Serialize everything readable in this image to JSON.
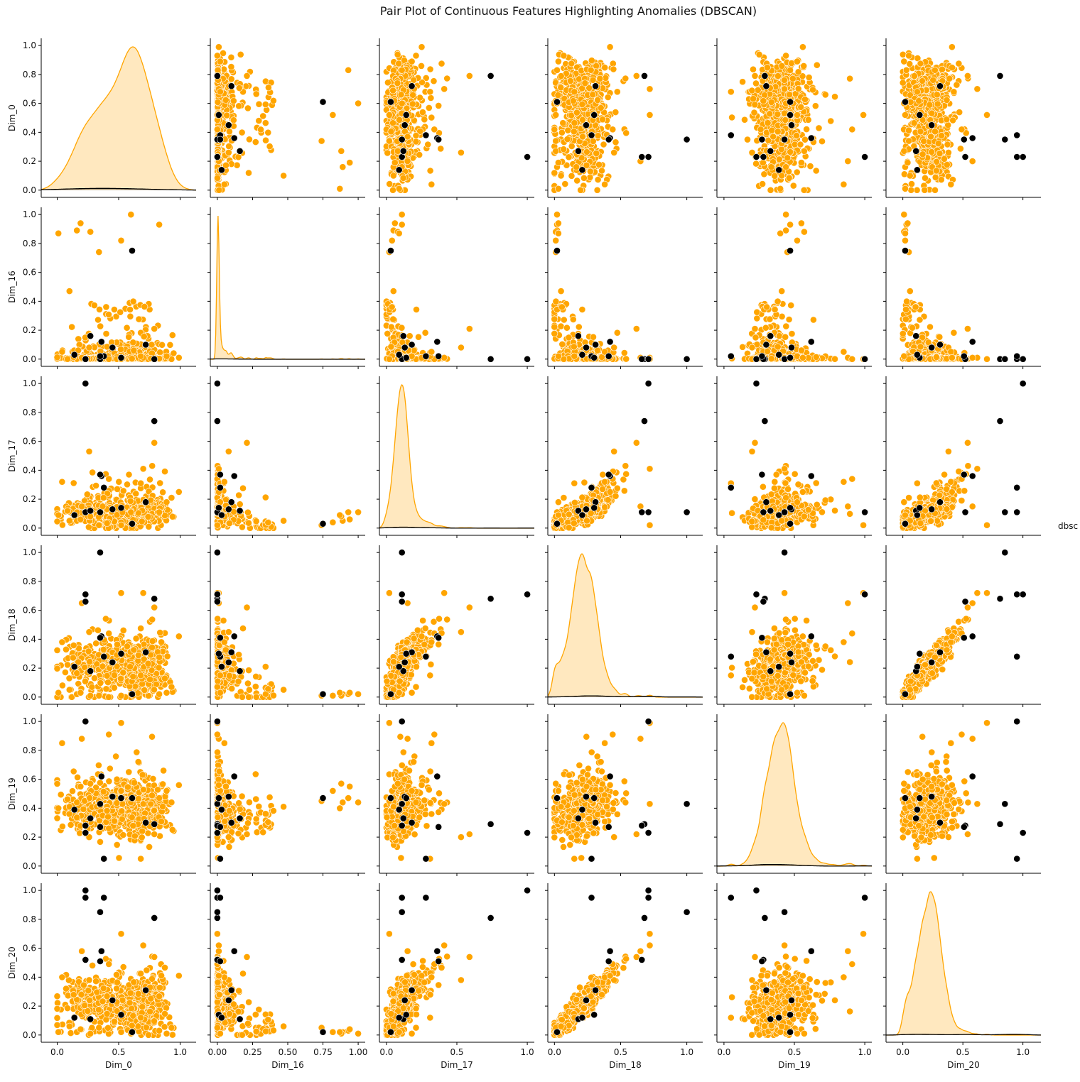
{
  "chart_data": {
    "type": "scatter",
    "title": "Pair Plot of Continuous Features Highlighting Anomalies (DBSCAN)",
    "subtype": "pairplot",
    "variables": [
      "Dim_0",
      "Dim_16",
      "Dim_17",
      "Dim_18",
      "Dim_19",
      "Dim_20"
    ],
    "diagonal_kind": "kde",
    "offdiagonal_kind": "scatter",
    "hue": "dbscan",
    "legend_title": "dbsc",
    "legend_position": "right",
    "colors": {
      "normal": "#ffa500",
      "anomaly": "#000000",
      "edge": "#ffffff"
    },
    "axes": {
      "Dim_0": {
        "lim": [
          -0.13,
          1.13
        ],
        "ticks": [
          "0.0",
          "0.5",
          "1.0"
        ],
        "tick_values": [
          0,
          0.5,
          1
        ]
      },
      "Dim_16": {
        "lim": [
          -0.05,
          1.05
        ],
        "ticks": [
          "0.00",
          "0.25",
          "0.50",
          "0.75",
          "1.00"
        ],
        "tick_values": [
          0,
          0.25,
          0.5,
          0.75,
          1
        ]
      },
      "Dim_17": {
        "lim": [
          -0.05,
          1.05
        ],
        "ticks": [
          "0.0",
          "0.5",
          "1.0"
        ],
        "tick_values": [
          0,
          0.5,
          1
        ]
      },
      "Dim_18": {
        "lim": [
          -0.05,
          1.12
        ],
        "ticks": [
          "0.0",
          "0.5",
          "1.0"
        ],
        "tick_values": [
          0,
          0.5,
          1
        ]
      },
      "Dim_19": {
        "lim": [
          -0.05,
          1.05
        ],
        "ticks": [
          "0.0",
          "0.5",
          "1.0"
        ],
        "tick_values": [
          0,
          0.5,
          1
        ]
      },
      "Dim_20": {
        "lim": [
          -0.14,
          1.15
        ],
        "ticks": [
          "0.0",
          "0.5",
          "1.0"
        ],
        "tick_values": [
          0,
          0.5,
          1
        ]
      }
    },
    "row_ticks": [
      "0.0",
      "0.2",
      "0.4",
      "0.6",
      "0.8",
      "1.0"
    ],
    "row_tick_values": [
      0,
      0.2,
      0.4,
      0.6,
      0.8,
      1.0
    ],
    "row_lim": [
      -0.05,
      1.05
    ],
    "anomalies": [
      [
        0.79,
        0.0,
        0.74,
        0.68,
        0.29,
        0.81
      ],
      [
        0.23,
        0.0,
        1.0,
        0.71,
        0.23,
        1.0
      ],
      [
        0.35,
        0.0,
        0.11,
        1.0,
        0.43,
        0.85
      ],
      [
        0.23,
        0.0,
        0.11,
        0.71,
        1.0,
        0.95
      ],
      [
        0.38,
        0.02,
        0.28,
        0.28,
        0.05,
        0.95
      ],
      [
        0.61,
        0.75,
        0.03,
        0.02,
        0.47,
        0.02
      ],
      [
        0.36,
        0.12,
        0.36,
        0.42,
        0.62,
        0.58
      ],
      [
        0.23,
        0.0,
        0.11,
        0.66,
        0.28,
        0.52
      ],
      [
        0.35,
        0.02,
        0.37,
        0.41,
        0.27,
        0.51
      ],
      [
        0.72,
        0.1,
        0.18,
        0.31,
        0.3,
        0.31
      ],
      [
        0.45,
        0.08,
        0.13,
        0.24,
        0.48,
        0.24
      ],
      [
        0.27,
        0.16,
        0.12,
        0.18,
        0.33,
        0.11
      ],
      [
        0.52,
        0.01,
        0.14,
        0.3,
        0.47,
        0.14
      ],
      [
        0.14,
        0.03,
        0.09,
        0.21,
        0.39,
        0.12
      ]
    ],
    "normal_outliers": [
      [
        0.6,
        1.0,
        0.11,
        0.02,
        0.44,
        0.01
      ],
      [
        0.83,
        0.93,
        0.11,
        0.02,
        0.47,
        0.03
      ],
      [
        0.16,
        0.89,
        0.05,
        0.02,
        0.44,
        0.02
      ],
      [
        0.52,
        0.82,
        0.04,
        0.01,
        0.52,
        0.02
      ],
      [
        0.19,
        0.94,
        0.06,
        0.03,
        0.55,
        0.04
      ],
      [
        0.27,
        0.88,
        0.08,
        0.01,
        0.57,
        0.01
      ],
      [
        0.01,
        0.87,
        0.09,
        0.03,
        0.4,
        0.02
      ],
      [
        0.34,
        0.74,
        0.02,
        0.01,
        0.45,
        0.05
      ],
      [
        0.79,
        0.21,
        0.59,
        0.62,
        0.22,
        0.54
      ],
      [
        0.7,
        0.01,
        0.41,
        0.72,
        0.43,
        0.62
      ],
      [
        0.26,
        0.08,
        0.53,
        0.45,
        0.2,
        0.38
      ],
      [
        0.52,
        0.0,
        0.02,
        0.72,
        0.99,
        0.7
      ],
      [
        0.2,
        0.01,
        0.15,
        0.65,
        0.88,
        0.58
      ],
      [
        0.42,
        0.0,
        0.34,
        0.44,
        0.91,
        0.49
      ],
      [
        0.93,
        0.0,
        0.21,
        0.07,
        0.44,
        0.05
      ],
      [
        0.89,
        0.02,
        0.18,
        0.03,
        0.52,
        0.01
      ],
      [
        0.68,
        0.02,
        0.31,
        0.15,
        0.05,
        0.12
      ],
      [
        0.04,
        0.05,
        0.32,
        0.38,
        0.85,
        0.4
      ],
      [
        0.99,
        0.01,
        0.25,
        0.42,
        0.56,
        0.41
      ],
      [
        0.1,
        0.47,
        0.05,
        0.05,
        0.41,
        0.06
      ]
    ]
  }
}
